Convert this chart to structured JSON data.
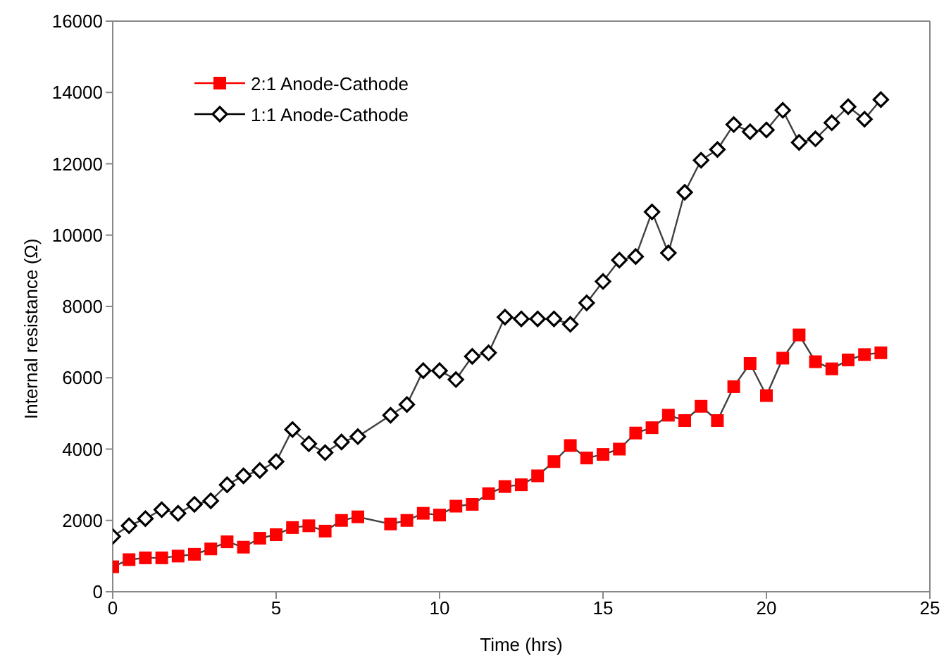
{
  "chart_data": {
    "type": "line",
    "xlabel": "Time (hrs)",
    "ylabel": "Internal resistance (Ω)",
    "x": [
      0,
      0.5,
      1,
      1.5,
      2,
      2.5,
      3,
      3.5,
      4,
      4.5,
      5,
      5.5,
      6,
      6.5,
      7,
      7.5,
      8.5,
      9,
      9.5,
      10,
      10.5,
      11,
      11.5,
      12,
      12.5,
      13,
      13.5,
      14,
      14.5,
      15,
      15.5,
      16,
      16.5,
      17,
      17.5,
      18,
      18.5,
      19,
      19.5,
      20,
      20.5,
      21,
      21.5,
      22,
      22.5,
      23,
      23.5
    ],
    "series": [
      {
        "name": "2:1 Anode-Cathode",
        "color": "#ff0000",
        "marker": "square",
        "values": [
          700,
          900,
          950,
          950,
          1000,
          1050,
          1200,
          1400,
          1250,
          1500,
          1600,
          1800,
          1850,
          1700,
          2000,
          2100,
          1900,
          2000,
          2200,
          2150,
          2400,
          2450,
          2750,
          2950,
          3000,
          3250,
          3650,
          4100,
          3750,
          3850,
          4000,
          4450,
          4600,
          4950,
          4800,
          5200,
          4800,
          5750,
          6400,
          5500,
          6550,
          7200,
          6450,
          6250,
          6500,
          6650,
          6700
        ]
      },
      {
        "name": "1:1 Anode-Cathode",
        "color": "#000000",
        "marker": "diamond",
        "values": [
          1550,
          1850,
          2050,
          2300,
          2200,
          2450,
          2550,
          3000,
          3250,
          3400,
          3650,
          4550,
          4150,
          3900,
          4200,
          4350,
          4950,
          5250,
          6200,
          6200,
          5950,
          6600,
          6700,
          7700,
          7650,
          7650,
          7650,
          7500,
          8100,
          8700,
          9300,
          9400,
          10650,
          9500,
          11200,
          12100,
          12400,
          13100,
          12900,
          12950,
          13500,
          12600,
          12700,
          13150,
          13600,
          13250,
          13800
        ]
      }
    ],
    "xlim": [
      0,
      25
    ],
    "xticks": [
      0,
      5,
      10,
      15,
      20,
      25
    ],
    "ylim": [
      0,
      16000
    ],
    "yticks": [
      0,
      2000,
      4000,
      6000,
      8000,
      10000,
      12000,
      14000,
      16000
    ],
    "grid": false,
    "legend": "top left",
    "line_style": "solid"
  }
}
